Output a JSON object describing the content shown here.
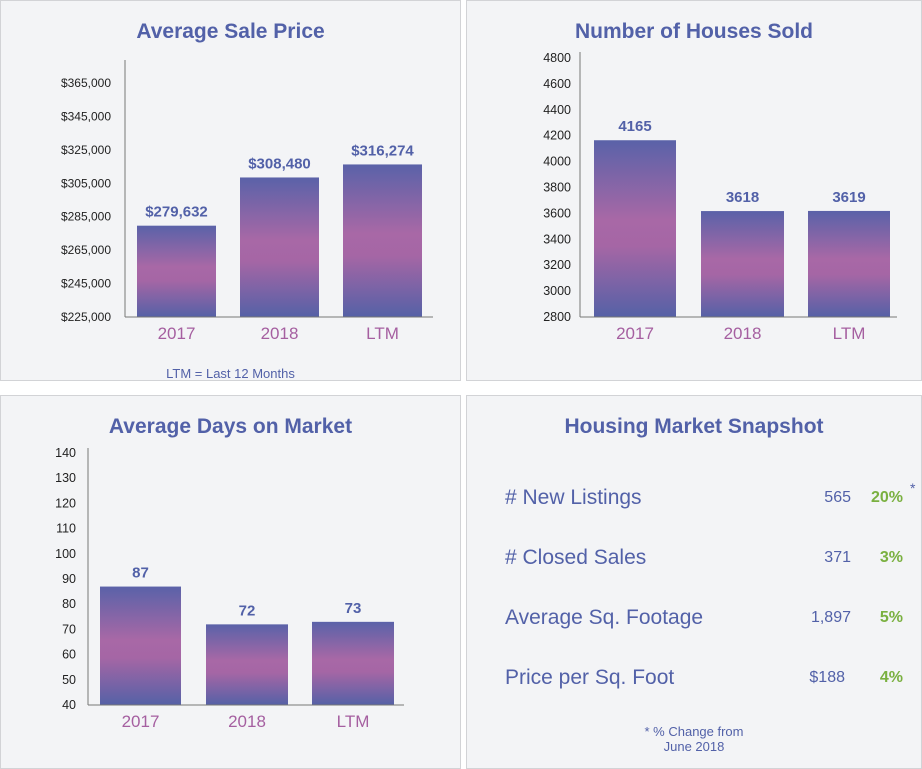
{
  "chart_data": [
    {
      "type": "bar",
      "title": "Average Sale Price",
      "categories": [
        "2017",
        "2018",
        "LTM"
      ],
      "values": [
        279632,
        308480,
        316274
      ],
      "value_labels": [
        "$279,632",
        "$308,480",
        "$316,274"
      ],
      "yticks": [
        "$225,000",
        "$245,000",
        "$265,000",
        "$285,000",
        "$305,000",
        "$325,000",
        "$345,000",
        "$365,000"
      ],
      "ylim": [
        225000,
        365000
      ],
      "footnote": "LTM = Last 12 Months"
    },
    {
      "type": "bar",
      "title": "Number of Houses Sold",
      "categories": [
        "2017",
        "2018",
        "LTM"
      ],
      "values": [
        4165,
        3618,
        3619
      ],
      "value_labels": [
        "4165",
        "3618",
        "3619"
      ],
      "yticks": [
        "2800",
        "3000",
        "3200",
        "3400",
        "3600",
        "3800",
        "4000",
        "4200",
        "4400",
        "4600",
        "4800"
      ],
      "ylim": [
        2800,
        4800
      ]
    },
    {
      "type": "bar",
      "title": "Average Days on Market",
      "categories": [
        "2017",
        "2018",
        "LTM"
      ],
      "values": [
        87,
        72,
        73
      ],
      "value_labels": [
        "87",
        "72",
        "73"
      ],
      "yticks": [
        "40",
        "50",
        "60",
        "70",
        "80",
        "90",
        "100",
        "110",
        "120",
        "130",
        "140"
      ],
      "ylim": [
        40,
        140
      ]
    }
  ],
  "snapshot": {
    "title": "Housing Market Snapshot",
    "rows": [
      {
        "label": "# New Listings",
        "value": "565",
        "change": "20%"
      },
      {
        "label": "# Closed Sales",
        "value": "371",
        "change": "3%"
      },
      {
        "label": "Average Sq. Footage",
        "value": "1,897",
        "change": "5%"
      },
      {
        "label": "Price per Sq. Foot",
        "value": "$188",
        "change": "4%"
      }
    ],
    "asterisk": "*",
    "footnote_line1": "* % Change from",
    "footnote_line2": "June 2018"
  },
  "colors": {
    "title": "#5261a8",
    "category": "#a55fa0",
    "bar_top": "#5a62a8",
    "bar_mid": "#a868a6",
    "change": "#7ab040"
  }
}
